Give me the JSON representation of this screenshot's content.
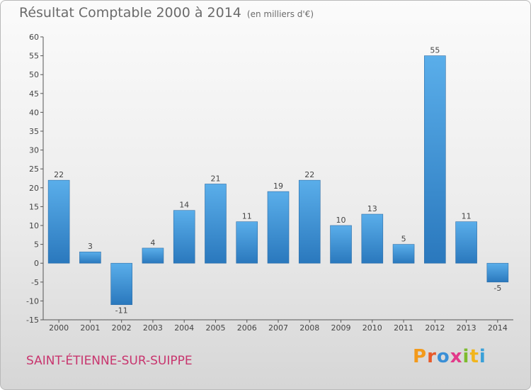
{
  "title": "Résultat Comptable 2000 à 2014",
  "subtitle": "(en milliers d'€)",
  "place_name": "SAINT-ÉTIENNE-SUR-SUIPPE",
  "logo_text": "Proxiti",
  "chart_data": {
    "type": "bar",
    "title": "Résultat Comptable 2000 à 2014",
    "subtitle": "(en milliers d'€)",
    "xlabel": "",
    "ylabel": "",
    "categories": [
      "2000",
      "2001",
      "2002",
      "2003",
      "2004",
      "2005",
      "2006",
      "2007",
      "2008",
      "2009",
      "2010",
      "2011",
      "2012",
      "2013",
      "2014"
    ],
    "values": [
      22,
      3,
      -11,
      4,
      14,
      21,
      11,
      19,
      22,
      10,
      13,
      5,
      55,
      11,
      -5
    ],
    "ylim": [
      -15,
      60
    ],
    "yticks": [
      -15,
      -10,
      -5,
      0,
      5,
      10,
      15,
      20,
      25,
      30,
      35,
      40,
      45,
      50,
      55,
      60
    ],
    "grid": false,
    "bar_color": "#3f8fd2"
  }
}
